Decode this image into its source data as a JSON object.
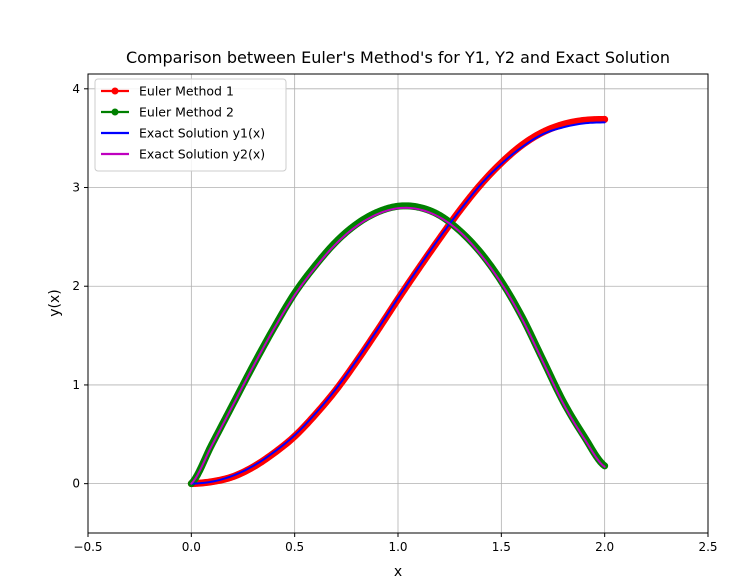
{
  "chart_data": {
    "type": "line",
    "title": "Comparison between Euler's Method's for Y1, Y2 and Exact Solution",
    "xlabel": "x",
    "ylabel": "y(x)",
    "xlim": [
      -0.5,
      2.5
    ],
    "ylim": [
      -0.5,
      4.15
    ],
    "xticks": [
      -0.5,
      0.0,
      0.5,
      1.0,
      1.5,
      2.0,
      2.5
    ],
    "xtick_labels": [
      "−0.5",
      "0.0",
      "0.5",
      "1.0",
      "1.5",
      "2.0",
      "2.5"
    ],
    "yticks": [
      0,
      1,
      2,
      3,
      4
    ],
    "ytick_labels": [
      "0",
      "1",
      "2",
      "3",
      "4"
    ],
    "grid": true,
    "legend_position": "upper-left",
    "x": [
      0.0,
      0.1,
      0.2,
      0.3,
      0.4,
      0.5,
      0.6,
      0.7,
      0.8,
      0.9,
      1.0,
      1.1,
      1.2,
      1.3,
      1.4,
      1.5,
      1.6,
      1.7,
      1.8,
      1.9,
      2.0
    ],
    "series": [
      {
        "name": "Euler Method 1",
        "color": "#ff0000",
        "style": "line-markers",
        "values": [
          0.0,
          0.02,
          0.07,
          0.17,
          0.31,
          0.48,
          0.7,
          0.95,
          1.24,
          1.55,
          1.87,
          2.18,
          2.48,
          2.77,
          3.03,
          3.25,
          3.43,
          3.56,
          3.64,
          3.68,
          3.69
        ]
      },
      {
        "name": "Euler Method 2",
        "color": "#008000",
        "style": "line-markers",
        "values": [
          0.0,
          0.4,
          0.8,
          1.2,
          1.58,
          1.93,
          2.21,
          2.45,
          2.63,
          2.75,
          2.81,
          2.8,
          2.72,
          2.56,
          2.34,
          2.05,
          1.69,
          1.26,
          0.83,
          0.48,
          0.18
        ]
      },
      {
        "name": "Exact Solution y1(x)",
        "color": "#0000ff",
        "style": "line",
        "values": [
          0.0,
          0.02,
          0.08,
          0.18,
          0.32,
          0.49,
          0.71,
          0.96,
          1.25,
          1.56,
          1.88,
          2.19,
          2.49,
          2.77,
          3.03,
          3.24,
          3.41,
          3.54,
          3.61,
          3.65,
          3.66
        ]
      },
      {
        "name": "Exact Solution y2(x)",
        "color": "#bf00bf",
        "style": "line",
        "values": [
          0.0,
          0.39,
          0.79,
          1.19,
          1.57,
          1.91,
          2.19,
          2.43,
          2.61,
          2.73,
          2.79,
          2.78,
          2.7,
          2.55,
          2.32,
          2.03,
          1.67,
          1.24,
          0.81,
          0.46,
          0.17
        ]
      }
    ]
  }
}
